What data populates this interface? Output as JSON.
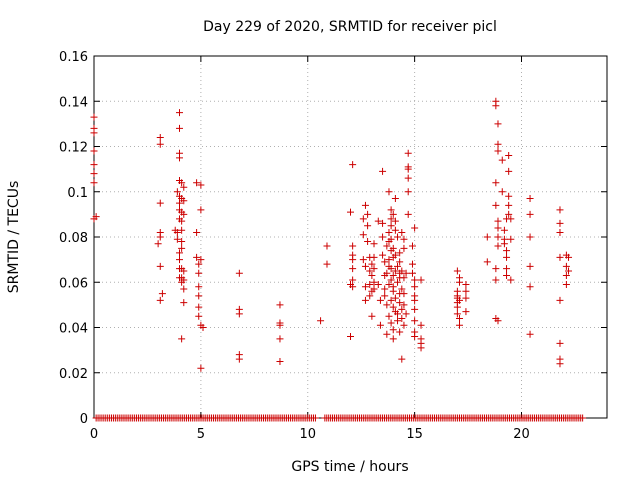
{
  "chart_data": {
    "type": "scatter",
    "title": "Day 229 of 2020, SRMTID for receiver picl",
    "xlabel": "GPS time / hours",
    "ylabel": "SRMTID / TECUs",
    "xlim": [
      0,
      24
    ],
    "ylim": [
      0,
      0.16
    ],
    "x_ticks": [
      0,
      5,
      10,
      15,
      20
    ],
    "x_tick_labels": [
      "0",
      "5",
      "10",
      "15",
      "20"
    ],
    "y_ticks": [
      0,
      0.02,
      0.04,
      0.06,
      0.08,
      0.1,
      0.12,
      0.14,
      0.16
    ],
    "y_tick_labels": [
      "0",
      "0.02",
      "0.04",
      "0.06",
      "0.08",
      "0.1",
      "0.12",
      "0.14",
      "0.16"
    ],
    "grid": true,
    "marker": "plus",
    "color": "#cc0000",
    "baseline_segments": [
      [
        0.1,
        10.4
      ],
      [
        10.8,
        22.9
      ]
    ],
    "points": [
      [
        0.0,
        0.133
      ],
      [
        0.0,
        0.128
      ],
      [
        0.0,
        0.126
      ],
      [
        0.0,
        0.118
      ],
      [
        0.0,
        0.112
      ],
      [
        0.0,
        0.108
      ],
      [
        0.0,
        0.104
      ],
      [
        0.1,
        0.089
      ],
      [
        0.0,
        0.088
      ],
      [
        3.1,
        0.124
      ],
      [
        3.1,
        0.121
      ],
      [
        3.1,
        0.095
      ],
      [
        3.1,
        0.082
      ],
      [
        3.1,
        0.08
      ],
      [
        3.0,
        0.077
      ],
      [
        3.1,
        0.067
      ],
      [
        3.2,
        0.055
      ],
      [
        3.1,
        0.052
      ],
      [
        3.8,
        0.083
      ],
      [
        3.9,
        0.1
      ],
      [
        3.9,
        0.082
      ],
      [
        3.9,
        0.079
      ],
      [
        4.0,
        0.135
      ],
      [
        4.0,
        0.128
      ],
      [
        4.0,
        0.117
      ],
      [
        4.0,
        0.115
      ],
      [
        4.0,
        0.105
      ],
      [
        4.0,
        0.098
      ],
      [
        4.0,
        0.095
      ],
      [
        4.0,
        0.092
      ],
      [
        4.0,
        0.088
      ],
      [
        4.0,
        0.073
      ],
      [
        4.0,
        0.07
      ],
      [
        4.0,
        0.066
      ],
      [
        4.0,
        0.062
      ],
      [
        4.1,
        0.104
      ],
      [
        4.1,
        0.097
      ],
      [
        4.1,
        0.091
      ],
      [
        4.1,
        0.087
      ],
      [
        4.1,
        0.083
      ],
      [
        4.1,
        0.078
      ],
      [
        4.1,
        0.075
      ],
      [
        4.1,
        0.066
      ],
      [
        4.1,
        0.062
      ],
      [
        4.1,
        0.06
      ],
      [
        4.2,
        0.102
      ],
      [
        4.2,
        0.096
      ],
      [
        4.2,
        0.09
      ],
      [
        4.2,
        0.065
      ],
      [
        4.2,
        0.061
      ],
      [
        4.2,
        0.057
      ],
      [
        4.2,
        0.051
      ],
      [
        4.1,
        0.035
      ],
      [
        4.8,
        0.104
      ],
      [
        4.8,
        0.082
      ],
      [
        4.8,
        0.071
      ],
      [
        4.9,
        0.068
      ],
      [
        4.9,
        0.064
      ],
      [
        4.9,
        0.058
      ],
      [
        4.9,
        0.054
      ],
      [
        4.9,
        0.049
      ],
      [
        4.9,
        0.045
      ],
      [
        5.0,
        0.103
      ],
      [
        5.0,
        0.092
      ],
      [
        5.0,
        0.07
      ],
      [
        5.0,
        0.041
      ],
      [
        5.1,
        0.04
      ],
      [
        5.0,
        0.022
      ],
      [
        6.8,
        0.064
      ],
      [
        6.8,
        0.048
      ],
      [
        6.8,
        0.046
      ],
      [
        6.8,
        0.028
      ],
      [
        6.8,
        0.026
      ],
      [
        8.7,
        0.05
      ],
      [
        8.7,
        0.042
      ],
      [
        8.7,
        0.041
      ],
      [
        8.7,
        0.035
      ],
      [
        8.7,
        0.025
      ],
      [
        10.6,
        0.043
      ],
      [
        10.9,
        0.076
      ],
      [
        10.9,
        0.068
      ],
      [
        12.1,
        0.112
      ],
      [
        12.0,
        0.091
      ],
      [
        12.1,
        0.076
      ],
      [
        12.1,
        0.072
      ],
      [
        12.1,
        0.07
      ],
      [
        12.1,
        0.066
      ],
      [
        12.1,
        0.061
      ],
      [
        12.0,
        0.059
      ],
      [
        12.1,
        0.058
      ],
      [
        12.0,
        0.036
      ],
      [
        12.6,
        0.088
      ],
      [
        12.6,
        0.081
      ],
      [
        12.6,
        0.07
      ],
      [
        12.7,
        0.094
      ],
      [
        12.7,
        0.067
      ],
      [
        12.7,
        0.058
      ],
      [
        12.7,
        0.052
      ],
      [
        12.8,
        0.09
      ],
      [
        12.8,
        0.085
      ],
      [
        12.8,
        0.078
      ],
      [
        12.9,
        0.071
      ],
      [
        12.9,
        0.065
      ],
      [
        12.9,
        0.059
      ],
      [
        12.9,
        0.054
      ],
      [
        13.0,
        0.068
      ],
      [
        13.0,
        0.063
      ],
      [
        13.0,
        0.056
      ],
      [
        13.0,
        0.045
      ],
      [
        13.1,
        0.077
      ],
      [
        13.1,
        0.071
      ],
      [
        13.1,
        0.066
      ],
      [
        13.1,
        0.06
      ],
      [
        13.1,
        0.057
      ],
      [
        13.3,
        0.087
      ],
      [
        13.3,
        0.059
      ],
      [
        13.4,
        0.052
      ],
      [
        13.4,
        0.041
      ],
      [
        13.5,
        0.109
      ],
      [
        13.5,
        0.086
      ],
      [
        13.5,
        0.08
      ],
      [
        13.5,
        0.072
      ],
      [
        13.6,
        0.069
      ],
      [
        13.6,
        0.063
      ],
      [
        13.6,
        0.057
      ],
      [
        13.6,
        0.054
      ],
      [
        13.7,
        0.076
      ],
      [
        13.7,
        0.064
      ],
      [
        13.7,
        0.05
      ],
      [
        13.7,
        0.037
      ],
      [
        13.8,
        0.1
      ],
      [
        13.8,
        0.082
      ],
      [
        13.8,
        0.078
      ],
      [
        13.8,
        0.07
      ],
      [
        13.8,
        0.067
      ],
      [
        13.8,
        0.059
      ],
      [
        13.8,
        0.045
      ],
      [
        13.9,
        0.092
      ],
      [
        13.9,
        0.088
      ],
      [
        13.9,
        0.085
      ],
      [
        13.9,
        0.079
      ],
      [
        13.9,
        0.074
      ],
      [
        13.9,
        0.066
      ],
      [
        13.9,
        0.061
      ],
      [
        13.9,
        0.052
      ],
      [
        13.9,
        0.042
      ],
      [
        14.0,
        0.09
      ],
      [
        14.0,
        0.075
      ],
      [
        14.0,
        0.071
      ],
      [
        14.0,
        0.063
      ],
      [
        14.0,
        0.058
      ],
      [
        14.0,
        0.056
      ],
      [
        14.0,
        0.049
      ],
      [
        14.0,
        0.039
      ],
      [
        14.0,
        0.035
      ],
      [
        14.1,
        0.097
      ],
      [
        14.1,
        0.087
      ],
      [
        14.1,
        0.083
      ],
      [
        14.1,
        0.072
      ],
      [
        14.1,
        0.065
      ],
      [
        14.1,
        0.053
      ],
      [
        14.1,
        0.047
      ],
      [
        14.2,
        0.08
      ],
      [
        14.2,
        0.067
      ],
      [
        14.2,
        0.06
      ],
      [
        14.2,
        0.046
      ],
      [
        14.2,
        0.043
      ],
      [
        14.3,
        0.073
      ],
      [
        14.3,
        0.069
      ],
      [
        14.3,
        0.064
      ],
      [
        14.3,
        0.062
      ],
      [
        14.3,
        0.055
      ],
      [
        14.3,
        0.051
      ],
      [
        14.3,
        0.038
      ],
      [
        14.4,
        0.082
      ],
      [
        14.4,
        0.065
      ],
      [
        14.4,
        0.057
      ],
      [
        14.4,
        0.048
      ],
      [
        14.4,
        0.044
      ],
      [
        14.4,
        0.026
      ],
      [
        14.5,
        0.079
      ],
      [
        14.5,
        0.075
      ],
      [
        14.5,
        0.062
      ],
      [
        14.5,
        0.055
      ],
      [
        14.5,
        0.05
      ],
      [
        14.5,
        0.041
      ],
      [
        14.6,
        0.064
      ],
      [
        14.6,
        0.046
      ],
      [
        14.7,
        0.117
      ],
      [
        14.7,
        0.111
      ],
      [
        14.7,
        0.11
      ],
      [
        14.7,
        0.106
      ],
      [
        14.7,
        0.1
      ],
      [
        14.7,
        0.09
      ],
      [
        14.9,
        0.076
      ],
      [
        14.9,
        0.068
      ],
      [
        14.9,
        0.064
      ],
      [
        15.0,
        0.084
      ],
      [
        15.0,
        0.061
      ],
      [
        15.0,
        0.058
      ],
      [
        15.0,
        0.054
      ],
      [
        15.0,
        0.052
      ],
      [
        15.0,
        0.048
      ],
      [
        15.0,
        0.043
      ],
      [
        15.0,
        0.038
      ],
      [
        15.0,
        0.036
      ],
      [
        15.3,
        0.061
      ],
      [
        15.3,
        0.041
      ],
      [
        15.3,
        0.035
      ],
      [
        15.3,
        0.033
      ],
      [
        15.3,
        0.031
      ],
      [
        17.0,
        0.065
      ],
      [
        17.0,
        0.056
      ],
      [
        17.0,
        0.054
      ],
      [
        17.0,
        0.053
      ],
      [
        17.0,
        0.051
      ],
      [
        17.0,
        0.049
      ],
      [
        17.0,
        0.046
      ],
      [
        17.1,
        0.062
      ],
      [
        17.1,
        0.06
      ],
      [
        17.1,
        0.052
      ],
      [
        17.1,
        0.044
      ],
      [
        17.1,
        0.041
      ],
      [
        17.4,
        0.059
      ],
      [
        17.4,
        0.056
      ],
      [
        17.4,
        0.053
      ],
      [
        17.4,
        0.047
      ],
      [
        18.4,
        0.08
      ],
      [
        18.4,
        0.069
      ],
      [
        18.8,
        0.14
      ],
      [
        18.8,
        0.138
      ],
      [
        18.9,
        0.13
      ],
      [
        18.9,
        0.121
      ],
      [
        18.9,
        0.118
      ],
      [
        18.8,
        0.104
      ],
      [
        18.8,
        0.094
      ],
      [
        18.9,
        0.087
      ],
      [
        18.9,
        0.084
      ],
      [
        18.9,
        0.08
      ],
      [
        18.9,
        0.076
      ],
      [
        18.8,
        0.066
      ],
      [
        18.8,
        0.061
      ],
      [
        18.8,
        0.044
      ],
      [
        18.9,
        0.043
      ],
      [
        19.1,
        0.114
      ],
      [
        19.1,
        0.1
      ],
      [
        19.2,
        0.083
      ],
      [
        19.2,
        0.079
      ],
      [
        19.2,
        0.077
      ],
      [
        19.3,
        0.088
      ],
      [
        19.3,
        0.074
      ],
      [
        19.3,
        0.071
      ],
      [
        19.3,
        0.066
      ],
      [
        19.3,
        0.063
      ],
      [
        19.4,
        0.116
      ],
      [
        19.4,
        0.109
      ],
      [
        19.4,
        0.098
      ],
      [
        19.4,
        0.094
      ],
      [
        19.4,
        0.09
      ],
      [
        19.5,
        0.088
      ],
      [
        19.5,
        0.079
      ],
      [
        19.5,
        0.061
      ],
      [
        20.4,
        0.097
      ],
      [
        20.4,
        0.09
      ],
      [
        20.4,
        0.08
      ],
      [
        20.4,
        0.067
      ],
      [
        20.4,
        0.058
      ],
      [
        20.4,
        0.037
      ],
      [
        21.8,
        0.092
      ],
      [
        21.8,
        0.086
      ],
      [
        21.8,
        0.082
      ],
      [
        21.8,
        0.071
      ],
      [
        21.8,
        0.052
      ],
      [
        21.8,
        0.033
      ],
      [
        21.8,
        0.026
      ],
      [
        21.8,
        0.024
      ],
      [
        22.1,
        0.072
      ],
      [
        22.1,
        0.067
      ],
      [
        22.1,
        0.063
      ],
      [
        22.1,
        0.059
      ],
      [
        22.2,
        0.071
      ],
      [
        22.2,
        0.065
      ]
    ]
  }
}
